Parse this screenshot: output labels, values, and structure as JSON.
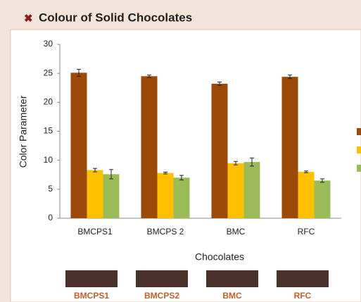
{
  "chart_data": {
    "type": "bar",
    "title": "Colour of Solid Chocolates",
    "x_label": "Chocolates",
    "y_label": "Color Parameter",
    "categories": [
      "BMCPS1",
      "BMCPS 2",
      "BMC",
      "RFC"
    ],
    "series": [
      {
        "color": "#9c4a0a",
        "values": [
          25.1,
          24.5,
          23.2,
          24.4
        ],
        "errors": [
          0.6,
          0.2,
          0.3,
          0.3
        ]
      },
      {
        "color": "#ffc000",
        "values": [
          8.3,
          7.8,
          9.5,
          8.0
        ],
        "errors": [
          0.3,
          0.15,
          0.3,
          0.15
        ]
      },
      {
        "color": "#9bbb59",
        "values": [
          7.6,
          7.0,
          9.7,
          6.5
        ],
        "errors": [
          0.8,
          0.4,
          0.7,
          0.3
        ]
      }
    ],
    "ylim": [
      0,
      30
    ],
    "yticks": [
      0,
      5,
      10,
      15,
      20,
      25,
      30
    ],
    "grid": false,
    "legend": "right"
  },
  "swatches": {
    "color": "#4a3129",
    "labels": [
      "BMCPS1",
      "BMCPS2",
      "BMC",
      "RFC"
    ]
  }
}
